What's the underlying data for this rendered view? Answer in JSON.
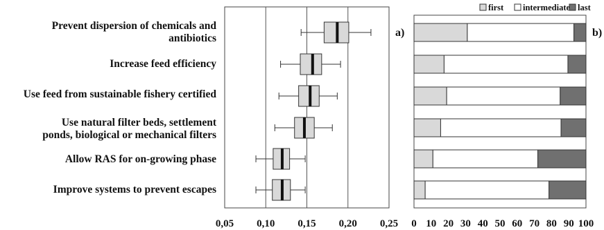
{
  "chart_data": [
    {
      "type": "boxplot",
      "panel_label": "a)",
      "categories": [
        "Prevent dispersion of chemicals and antibiotics",
        "Increase feed efficiency",
        "Use feed from sustainable fishery certified",
        "Use natural filter beds, settlement ponds, biological or mechanical filters",
        "Allow RAS for on-growing phase",
        "Improve systems to prevent escapes"
      ],
      "category_lines": [
        [
          "Prevent dispersion of chemicals and",
          "antibiotics"
        ],
        [
          "Increase feed efficiency"
        ],
        [
          "Use feed from sustainable fishery certified"
        ],
        [
          "Use natural filter beds, settlement",
          "ponds, biological or mechanical filters"
        ],
        [
          "Allow RAS for on-growing phase"
        ],
        [
          "Improve systems to prevent escapes"
        ]
      ],
      "boxes": [
        {
          "whisker_low": 0.143,
          "q1": 0.171,
          "median": 0.187,
          "q3": 0.201,
          "whisker_high": 0.228
        },
        {
          "whisker_low": 0.118,
          "q1": 0.142,
          "median": 0.157,
          "q3": 0.168,
          "whisker_high": 0.191
        },
        {
          "whisker_low": 0.116,
          "q1": 0.14,
          "median": 0.154,
          "q3": 0.165,
          "whisker_high": 0.187
        },
        {
          "whisker_low": 0.111,
          "q1": 0.135,
          "median": 0.147,
          "q3": 0.159,
          "whisker_high": 0.181
        },
        {
          "whisker_low": 0.088,
          "q1": 0.109,
          "median": 0.12,
          "q3": 0.129,
          "whisker_high": 0.148
        },
        {
          "whisker_low": 0.088,
          "q1": 0.108,
          "median": 0.12,
          "q3": 0.13,
          "whisker_high": 0.148
        }
      ],
      "xlim": [
        0.05,
        0.25
      ],
      "xticks": [
        "0,05",
        "0,10",
        "0,15",
        "0,20",
        "0,25"
      ],
      "grid": "vertical"
    },
    {
      "type": "stacked_bar",
      "panel_label": "b)",
      "series": [
        {
          "name": "first",
          "color": "#d9d9d9",
          "values": [
            31,
            17.5,
            19,
            15.5,
            11,
            6.5
          ]
        },
        {
          "name": "intermediate",
          "color": "#ffffff",
          "values": [
            62,
            72,
            66,
            70,
            61,
            72
          ]
        },
        {
          "name": "last",
          "color": "#707070",
          "values": [
            7,
            10.5,
            15,
            14.5,
            28,
            21.5
          ]
        }
      ],
      "xlim": [
        0,
        100
      ],
      "xticks": [
        "0",
        "10",
        "20",
        "30",
        "40",
        "50",
        "60",
        "70",
        "80",
        "90",
        "100"
      ],
      "legend_position": "top",
      "grid": false
    }
  ]
}
